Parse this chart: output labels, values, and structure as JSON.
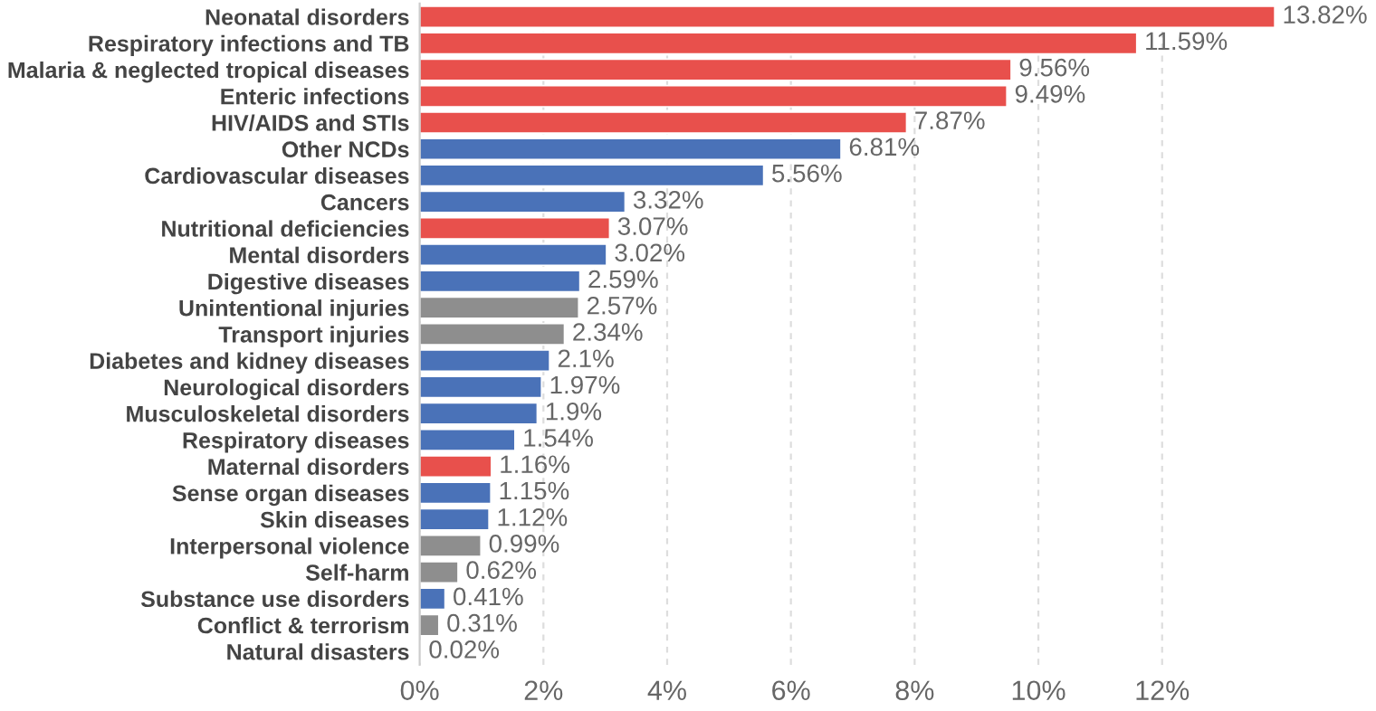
{
  "chart_data": {
    "type": "bar",
    "orientation": "horizontal",
    "categories": [
      "Neonatal disorders",
      "Respiratory infections and TB",
      "Malaria & neglected tropical diseases",
      "Enteric infections",
      "HIV/AIDS and STIs",
      "Other NCDs",
      "Cardiovascular diseases",
      "Cancers",
      "Nutritional deficiencies",
      "Mental disorders",
      "Digestive diseases",
      "Unintentional injuries",
      "Transport injuries",
      "Diabetes and kidney diseases",
      "Neurological disorders",
      "Musculoskeletal disorders",
      "Respiratory diseases",
      "Maternal disorders",
      "Sense organ diseases",
      "Skin diseases",
      "Interpersonal violence",
      "Self-harm",
      "Substance use disorders",
      "Conflict & terrorism",
      "Natural disasters"
    ],
    "values": [
      13.82,
      11.59,
      9.56,
      9.49,
      7.87,
      6.81,
      5.56,
      3.32,
      3.07,
      3.02,
      2.59,
      2.57,
      2.34,
      2.1,
      1.97,
      1.9,
      1.54,
      1.16,
      1.15,
      1.12,
      0.99,
      0.62,
      0.41,
      0.31,
      0.02
    ],
    "value_labels": [
      "13.82%",
      "11.59%",
      "9.56%",
      "9.49%",
      "7.87%",
      "6.81%",
      "5.56%",
      "3.32%",
      "3.07%",
      "3.02%",
      "2.59%",
      "2.57%",
      "2.34%",
      "2.1%",
      "1.97%",
      "1.9%",
      "1.54%",
      "1.16%",
      "1.15%",
      "1.12%",
      "0.99%",
      "0.62%",
      "0.41%",
      "0.31%",
      "0.02%"
    ],
    "colors": [
      "#e8504c",
      "#e8504c",
      "#e8504c",
      "#e8504c",
      "#e8504c",
      "#4a72b8",
      "#4a72b8",
      "#4a72b8",
      "#e8504c",
      "#4a72b8",
      "#4a72b8",
      "#8e8e8e",
      "#8e8e8e",
      "#4a72b8",
      "#4a72b8",
      "#4a72b8",
      "#4a72b8",
      "#e8504c",
      "#4a72b8",
      "#4a72b8",
      "#8e8e8e",
      "#8e8e8e",
      "#4a72b8",
      "#8e8e8e",
      "#8e8e8e"
    ],
    "xlim": [
      0,
      13.9
    ],
    "xticks": [
      {
        "value": 0,
        "label": "0%"
      },
      {
        "value": 2,
        "label": "2%"
      },
      {
        "value": 4,
        "label": "4%"
      },
      {
        "value": 6,
        "label": "6%"
      },
      {
        "value": 8,
        "label": "8%"
      },
      {
        "value": 10,
        "label": "10%"
      },
      {
        "value": 12,
        "label": "12%"
      }
    ],
    "grid": "x",
    "legend": false
  }
}
